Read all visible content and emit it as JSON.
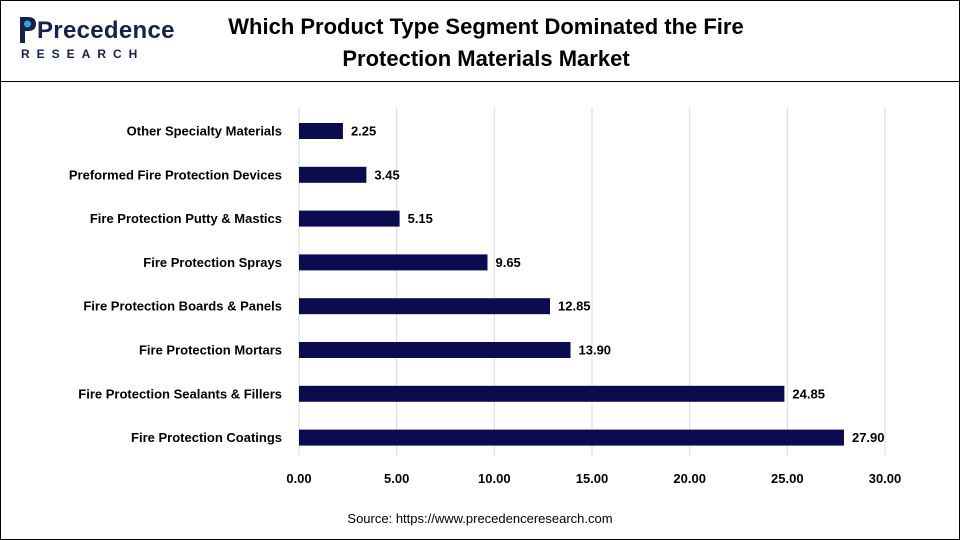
{
  "brand": {
    "name": "Precedence",
    "sub": "RESEARCH"
  },
  "title": "Which Product Type Segment Dominated the Fire Protection Materials Market",
  "source": "Source: https://www.precedenceresearch.com",
  "colors": {
    "bar": "#0b0c4f",
    "grid": "#d9d9d9",
    "brand": "#16224a"
  },
  "chart_data": {
    "type": "bar",
    "orientation": "horizontal",
    "categories": [
      "Other Specialty Materials",
      "Preformed Fire Protection Devices",
      "Fire Protection Putty & Mastics",
      "Fire Protection Sprays",
      "Fire Protection Boards & Panels",
      "Fire Protection Mortars",
      "Fire Protection Sealants & Fillers",
      "Fire Protection Coatings"
    ],
    "values": [
      2.25,
      3.45,
      5.15,
      9.65,
      12.85,
      13.9,
      24.85,
      27.9
    ],
    "value_labels": [
      "2.25",
      "3.45",
      "5.15",
      "9.65",
      "12.85",
      "13.90",
      "24.85",
      "27.90"
    ],
    "xlim": [
      0,
      30
    ],
    "xticks": [
      "0.00",
      "5.00",
      "10.00",
      "15.00",
      "20.00",
      "25.00",
      "30.00"
    ],
    "grid": true,
    "legend": "none"
  }
}
